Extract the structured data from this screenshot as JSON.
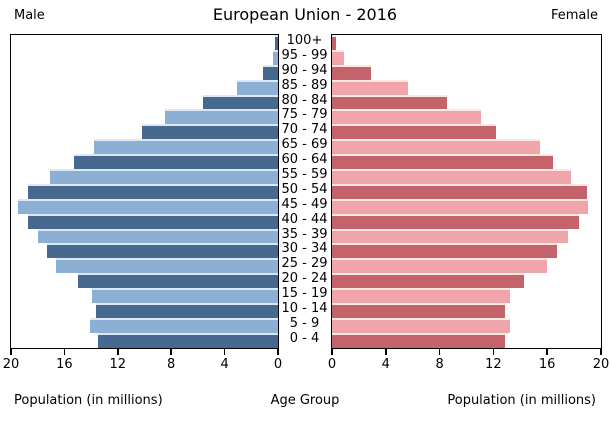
{
  "header": {
    "male_label": "Male",
    "title": "European Union - 2016",
    "female_label": "Female"
  },
  "axis": {
    "left_ticks": [
      20,
      16,
      12,
      8,
      4,
      0
    ],
    "right_ticks": [
      0,
      4,
      8,
      12,
      16,
      20
    ],
    "x_label_left": "Population (in millions)",
    "x_label_center": "Age Group",
    "x_label_right": "Population (in millions)"
  },
  "colors": {
    "male_dark": "#47688f",
    "male_light": "#8cafd6",
    "male_edge": "#dce8f3",
    "female_dark": "#c4636b",
    "female_light": "#f0a5aa",
    "female_edge": "#f9e9e2",
    "axis_color": "#000000"
  },
  "chart_data": {
    "type": "bar",
    "subtype": "population-pyramid",
    "title": "European Union - 2016",
    "order": "top-to-bottom",
    "categories": [
      "100+",
      "95 - 99",
      "90 - 94",
      "85 - 89",
      "80 - 84",
      "75 - 79",
      "70 - 74",
      "65 - 69",
      "60 - 64",
      "55 - 59",
      "50 - 54",
      "45 - 49",
      "40 - 44",
      "35 - 39",
      "30 - 34",
      "25 - 29",
      "20 - 24",
      "15 - 19",
      "10 - 14",
      "5 - 9",
      "0 - 4"
    ],
    "series": [
      {
        "name": "Male",
        "side": "left",
        "values": [
          0.2,
          0.4,
          1.1,
          3.1,
          5.6,
          8.5,
          10.2,
          13.8,
          15.3,
          17.1,
          18.7,
          19.5,
          18.7,
          18.0,
          17.3,
          16.6,
          15.0,
          13.9,
          13.6,
          14.1,
          13.5
        ]
      },
      {
        "name": "Female",
        "side": "right",
        "values": [
          0.3,
          0.9,
          2.9,
          5.7,
          8.6,
          11.1,
          12.2,
          15.5,
          16.5,
          17.8,
          19.0,
          19.1,
          18.4,
          17.6,
          16.8,
          16.0,
          14.3,
          13.3,
          12.9,
          13.3,
          12.9
        ]
      }
    ],
    "xlabel": "Population (in millions)",
    "ylabel": "Age Group",
    "xlim": [
      0,
      20
    ],
    "xticks": [
      0,
      4,
      8,
      12,
      16,
      20
    ],
    "grid": false,
    "legend": false
  }
}
